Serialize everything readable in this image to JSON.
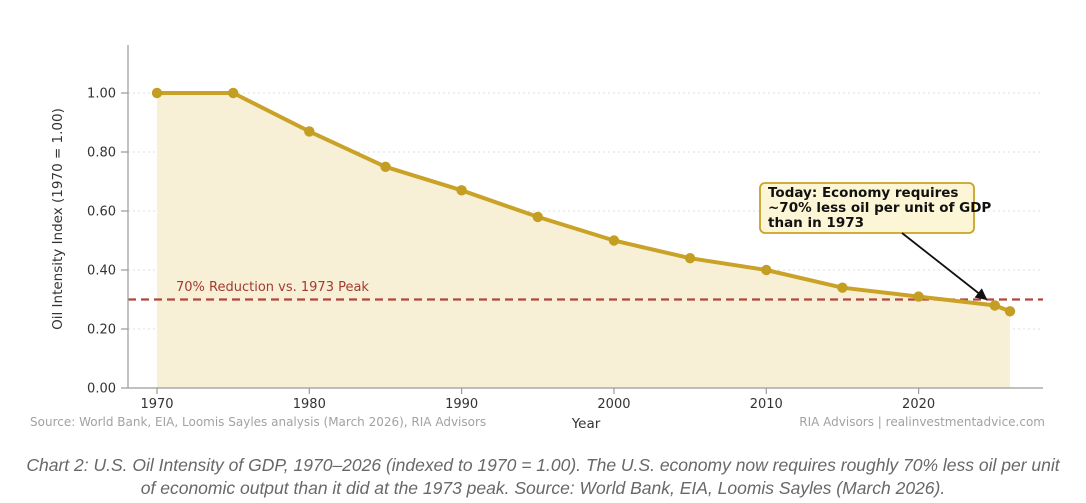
{
  "chart": {
    "y_axis_label": "Oil Intensity Index (1970 = 1.00)",
    "x_axis_label": "Year",
    "y_ticks": [
      {
        "label": "0.00",
        "value": 0.0
      },
      {
        "label": "0.20",
        "value": 0.2
      },
      {
        "label": "0.40",
        "value": 0.4
      },
      {
        "label": "0.60",
        "value": 0.6
      },
      {
        "label": "0.80",
        "value": 0.8
      },
      {
        "label": "1.00",
        "value": 1.0
      }
    ],
    "x_ticks": [
      {
        "label": "1970",
        "value": 1970
      },
      {
        "label": "1980",
        "value": 1980
      },
      {
        "label": "1990",
        "value": 1990
      },
      {
        "label": "2000",
        "value": 2000
      },
      {
        "label": "2010",
        "value": 2010
      },
      {
        "label": "2020",
        "value": 2020
      }
    ],
    "reference_line": {
      "value": 0.3,
      "label": "70% Reduction vs. 1973 Peak"
    },
    "annotation": {
      "lines": [
        "Today: Economy requires",
        "~70% less oil per unit of GDP",
        "than in 1973"
      ],
      "points_to": {
        "x": 2025,
        "y": 0.28
      }
    },
    "footer_left": "Source: World Bank, EIA, Loomis Sayles analysis (March 2026), RIA Advisors",
    "footer_right": "RIA Advisors | realinvestmentadvice.com"
  },
  "caption": "Chart 2: U.S. Oil Intensity of GDP, 1970–2026 (indexed to 1970 = 1.00). The U.S. economy now requires roughly 70% less oil per unit of economic output than it did at the 1973 peak. Source: World Bank, EIA, Loomis Sayles (March 2026).",
  "chart_data": {
    "type": "area",
    "series_name": "U.S. Oil Intensity of GDP",
    "x": [
      1970,
      1975,
      1980,
      1985,
      1990,
      1995,
      2000,
      2005,
      2010,
      2015,
      2020,
      2025,
      2026
    ],
    "values": [
      1.0,
      1.0,
      0.87,
      0.75,
      0.67,
      0.58,
      0.5,
      0.44,
      0.4,
      0.34,
      0.31,
      0.28,
      0.26
    ],
    "title": "",
    "xlabel": "Year",
    "ylabel": "Oil Intensity Index (1970 = 1.00)",
    "xlim": [
      1966.5,
      2028
    ],
    "ylim": [
      0,
      1.15
    ],
    "grid": "horizontal-dotted",
    "legend": "none",
    "marker": "circle",
    "colors": {
      "line": "#c9a227",
      "marker": "#c49e22",
      "area_fill": "#f7f0d6",
      "reference_line": "#b2463e",
      "reference_label": "#a33b32",
      "gridline": "#dcdcdc",
      "spine": "#9a9a9a",
      "annotation_fill": "#fcf5d6",
      "annotation_border": "#c9a227",
      "arrow": "#111111"
    },
    "reference_line_y": 0.3,
    "annotation_text": "Today: Economy requires ~70% less oil per unit of GDP than in 1973"
  }
}
